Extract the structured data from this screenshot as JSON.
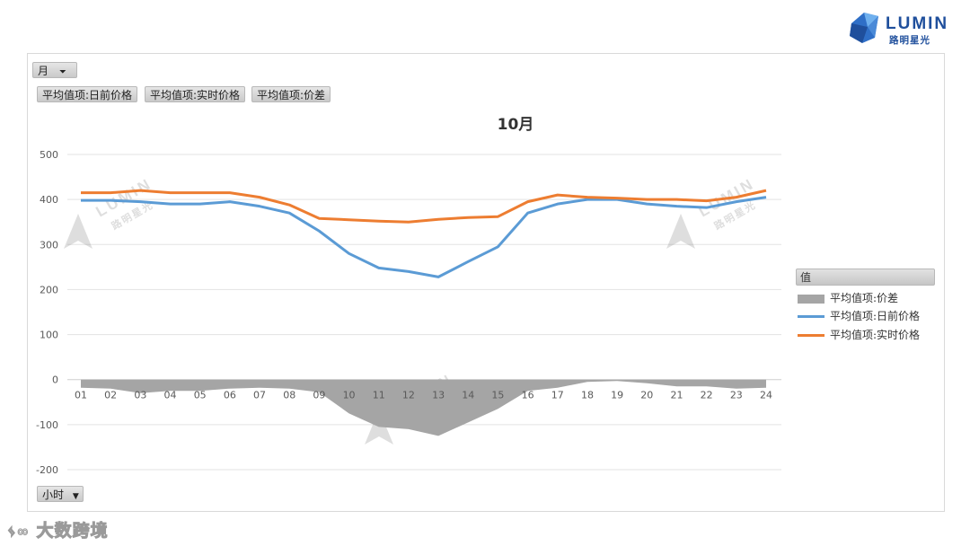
{
  "brand": {
    "name": "LUMIN",
    "name_cn": "路明星光",
    "footer_watermark": "大数跨境"
  },
  "filters": {
    "month_button": "月",
    "value_buttons": [
      "平均值项:日前价格",
      "平均值项:实时价格",
      "平均值项:价差"
    ],
    "hour_button": "小时"
  },
  "legend": {
    "title": "值",
    "items": [
      "平均值项:价差",
      "平均值项:日前价格",
      "平均值项:实时价格"
    ]
  },
  "colors": {
    "day_ahead": "#5b9bd5",
    "real_time": "#ed7d31",
    "spread": "#a5a5a5"
  },
  "chart_data": {
    "type": "line",
    "title": "10月",
    "x": [
      "01",
      "02",
      "03",
      "04",
      "05",
      "06",
      "07",
      "08",
      "09",
      "10",
      "11",
      "12",
      "13",
      "14",
      "15",
      "16",
      "17",
      "18",
      "19",
      "20",
      "21",
      "22",
      "23",
      "24"
    ],
    "ylim": [
      -200,
      500
    ],
    "yticks": [
      -200,
      -100,
      0,
      100,
      200,
      300,
      400,
      500
    ],
    "grid": true,
    "legend_position": "right",
    "series": [
      {
        "name": "平均值项:价差",
        "type": "area",
        "values": [
          -18,
          -20,
          -30,
          -25,
          -25,
          -20,
          -18,
          -20,
          -28,
          -75,
          -105,
          -110,
          -125,
          -95,
          -65,
          -25,
          -18,
          -5,
          -3,
          -8,
          -15,
          -15,
          -20,
          -18
        ]
      },
      {
        "name": "平均值项:日前价格",
        "type": "line",
        "values": [
          398,
          398,
          395,
          390,
          390,
          395,
          385,
          370,
          330,
          280,
          248,
          240,
          228,
          262,
          295,
          370,
          390,
          400,
          400,
          390,
          385,
          382,
          395,
          405
        ]
      },
      {
        "name": "平均值项:实时价格",
        "type": "line",
        "values": [
          415,
          415,
          420,
          415,
          415,
          415,
          405,
          388,
          358,
          355,
          352,
          350,
          356,
          360,
          362,
          395,
          410,
          405,
          403,
          400,
          400,
          397,
          405,
          420
        ]
      }
    ]
  }
}
